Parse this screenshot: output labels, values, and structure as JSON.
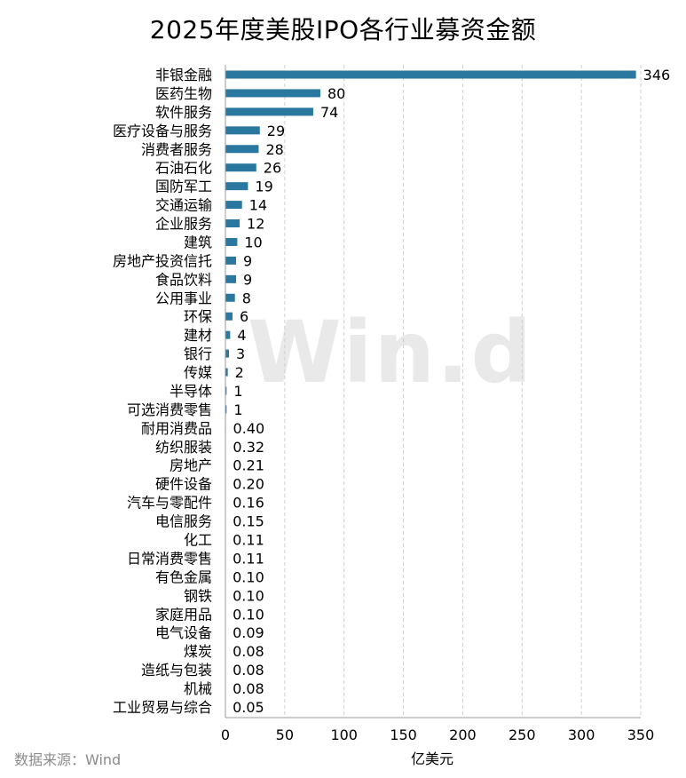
{
  "title": "2025年度美股IPO各行业募资金额",
  "source": "数据来源：Wind",
  "watermark": "Win.d",
  "colors": {
    "bar": "#2a77a0",
    "grid": "#cfcfcf",
    "axis": "#9a9a9a"
  },
  "chart_data": {
    "type": "bar",
    "orientation": "horizontal",
    "title": "2025年度美股IPO各行业募资金额",
    "xlabel": "亿美元",
    "ylabel": "",
    "xlim": [
      0,
      350
    ],
    "xticks": [
      0,
      50,
      100,
      150,
      200,
      250,
      300,
      350
    ],
    "grid": "vertical-dashed",
    "categories": [
      "非银金融",
      "医药生物",
      "软件服务",
      "医疗设备与服务",
      "消费者服务",
      "石油石化",
      "国防军工",
      "交通运输",
      "企业服务",
      "建筑",
      "房地产投资信托",
      "食品饮料",
      "公用事业",
      "环保",
      "建材",
      "银行",
      "传媒",
      "半导体",
      "可选消费零售",
      "耐用消费品",
      "纺织服装",
      "房地产",
      "硬件设备",
      "汽车与零配件",
      "电信服务",
      "化工",
      "日常消费零售",
      "有色金属",
      "钢铁",
      "家庭用品",
      "电气设备",
      "煤炭",
      "造纸与包装",
      "机械",
      "工业贸易与综合"
    ],
    "values": [
      346,
      80,
      74,
      29,
      28,
      26,
      19,
      14,
      12,
      10,
      9,
      9,
      8,
      6,
      4,
      3,
      2,
      1,
      1,
      0.4,
      0.32,
      0.21,
      0.2,
      0.16,
      0.15,
      0.11,
      0.11,
      0.1,
      0.1,
      0.1,
      0.09,
      0.08,
      0.08,
      0.08,
      0.05
    ],
    "value_labels": [
      "346",
      "80",
      "74",
      "29",
      "28",
      "26",
      "19",
      "14",
      "12",
      "10",
      "9",
      "9",
      "8",
      "6",
      "4",
      "3",
      "2",
      "1",
      "1",
      "0.40",
      "0.32",
      "0.21",
      "0.20",
      "0.16",
      "0.15",
      "0.11",
      "0.11",
      "0.10",
      "0.10",
      "0.10",
      "0.09",
      "0.08",
      "0.08",
      "0.08",
      "0.05"
    ]
  }
}
